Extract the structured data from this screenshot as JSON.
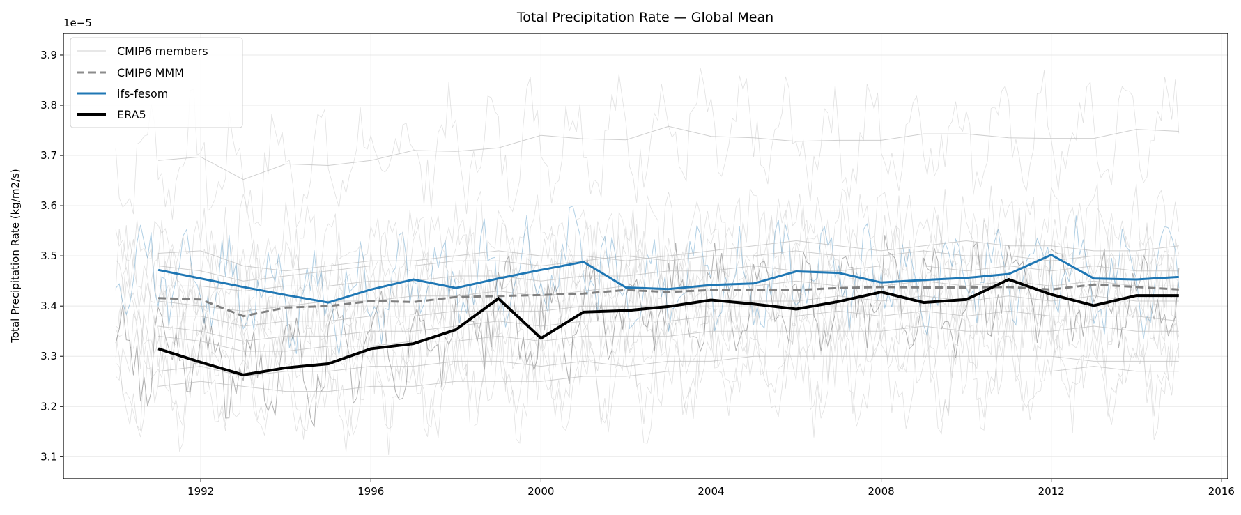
{
  "chart_data": {
    "type": "line",
    "title": "Total Precipitation Rate — Global Mean",
    "xlabel": "",
    "ylabel": "Total Precipitation Rate (kg/m2/s)",
    "offset_label": "1e−5",
    "xlim": [
      1988.77,
      2016.15
    ],
    "ylim": [
      3.056,
      3.943
    ],
    "xticks": [
      1992,
      1996,
      2000,
      2004,
      2008,
      2012,
      2016
    ],
    "yticks": [
      3.1,
      3.2,
      3.3,
      3.4,
      3.5,
      3.6,
      3.7,
      3.8,
      3.9
    ],
    "grid": true,
    "legend_position": "top-left",
    "legend": [
      "CMIP6 members",
      "CMIP6 MMM",
      "ifs-fesom",
      "ERA5"
    ],
    "x": [
      1991,
      1992,
      1993,
      1994,
      1995,
      1996,
      1997,
      1998,
      1999,
      2000,
      2001,
      2002,
      2003,
      2004,
      2005,
      2006,
      2007,
      2008,
      2009,
      2010,
      2011,
      2012,
      2013,
      2014,
      2015
    ],
    "series": [
      {
        "name": "ERA5",
        "color": "#000000",
        "values": [
          3.315,
          3.288,
          3.263,
          3.277,
          3.285,
          3.315,
          3.325,
          3.353,
          3.415,
          3.336,
          3.388,
          3.391,
          3.399,
          3.412,
          3.404,
          3.394,
          3.409,
          3.428,
          3.407,
          3.413,
          3.453,
          3.423,
          3.401,
          3.421,
          3.421
        ]
      },
      {
        "name": "ifs-fesom",
        "color": "#1f77b4",
        "values": [
          3.472,
          3.455,
          3.438,
          3.422,
          3.407,
          3.433,
          3.453,
          3.436,
          3.455,
          3.472,
          3.488,
          3.437,
          3.434,
          3.442,
          3.445,
          3.469,
          3.466,
          3.447,
          3.452,
          3.456,
          3.464,
          3.502,
          3.455,
          3.453,
          3.458
        ]
      },
      {
        "name": "CMIP6 MMM",
        "color": "#808080",
        "values": [
          3.416,
          3.413,
          3.38,
          3.397,
          3.4,
          3.41,
          3.408,
          3.418,
          3.42,
          3.422,
          3.425,
          3.432,
          3.428,
          3.432,
          3.433,
          3.432,
          3.436,
          3.438,
          3.437,
          3.437,
          3.438,
          3.433,
          3.443,
          3.438,
          3.433
        ]
      }
    ],
    "members": [
      [
        3.69,
        3.697,
        3.652,
        3.683,
        3.68,
        3.69,
        3.71,
        3.708,
        3.715,
        3.74,
        3.733,
        3.731,
        3.758,
        3.738,
        3.735,
        3.728,
        3.73,
        3.73,
        3.743,
        3.743,
        3.735,
        3.734,
        3.734,
        3.752,
        3.748
      ],
      [
        3.505,
        3.51,
        3.48,
        3.47,
        3.48,
        3.49,
        3.49,
        3.5,
        3.51,
        3.5,
        3.5,
        3.49,
        3.5,
        3.51,
        3.52,
        3.53,
        3.52,
        3.51,
        3.52,
        3.53,
        3.52,
        3.52,
        3.51,
        3.51,
        3.52
      ],
      [
        3.48,
        3.47,
        3.45,
        3.46,
        3.47,
        3.48,
        3.48,
        3.49,
        3.49,
        3.48,
        3.49,
        3.5,
        3.49,
        3.5,
        3.5,
        3.51,
        3.5,
        3.5,
        3.51,
        3.5,
        3.5,
        3.49,
        3.5,
        3.5,
        3.5
      ],
      [
        3.44,
        3.44,
        3.43,
        3.44,
        3.44,
        3.45,
        3.45,
        3.46,
        3.46,
        3.45,
        3.46,
        3.46,
        3.47,
        3.47,
        3.48,
        3.47,
        3.47,
        3.48,
        3.48,
        3.47,
        3.48,
        3.47,
        3.48,
        3.47,
        3.47
      ],
      [
        3.41,
        3.4,
        3.39,
        3.4,
        3.41,
        3.41,
        3.42,
        3.42,
        3.43,
        3.42,
        3.43,
        3.44,
        3.43,
        3.44,
        3.44,
        3.45,
        3.44,
        3.44,
        3.45,
        3.44,
        3.45,
        3.44,
        3.45,
        3.44,
        3.44
      ],
      [
        3.38,
        3.38,
        3.36,
        3.37,
        3.37,
        3.38,
        3.38,
        3.39,
        3.39,
        3.39,
        3.4,
        3.4,
        3.4,
        3.41,
        3.41,
        3.41,
        3.42,
        3.41,
        3.42,
        3.41,
        3.42,
        3.41,
        3.42,
        3.41,
        3.41
      ],
      [
        3.36,
        3.35,
        3.33,
        3.34,
        3.34,
        3.35,
        3.35,
        3.36,
        3.37,
        3.36,
        3.37,
        3.37,
        3.37,
        3.38,
        3.38,
        3.38,
        3.39,
        3.38,
        3.39,
        3.38,
        3.39,
        3.38,
        3.38,
        3.38,
        3.37
      ],
      [
        3.34,
        3.33,
        3.31,
        3.31,
        3.32,
        3.32,
        3.33,
        3.33,
        3.34,
        3.33,
        3.34,
        3.34,
        3.34,
        3.35,
        3.35,
        3.35,
        3.35,
        3.35,
        3.36,
        3.35,
        3.35,
        3.35,
        3.36,
        3.35,
        3.35
      ],
      [
        3.27,
        3.28,
        3.26,
        3.27,
        3.27,
        3.28,
        3.28,
        3.29,
        3.29,
        3.28,
        3.29,
        3.28,
        3.29,
        3.29,
        3.3,
        3.3,
        3.3,
        3.3,
        3.3,
        3.3,
        3.3,
        3.3,
        3.29,
        3.29,
        3.29
      ],
      [
        3.24,
        3.25,
        3.24,
        3.23,
        3.23,
        3.24,
        3.24,
        3.25,
        3.25,
        3.25,
        3.26,
        3.26,
        3.27,
        3.27,
        3.27,
        3.27,
        3.27,
        3.27,
        3.27,
        3.27,
        3.27,
        3.27,
        3.28,
        3.27,
        3.27
      ]
    ]
  }
}
